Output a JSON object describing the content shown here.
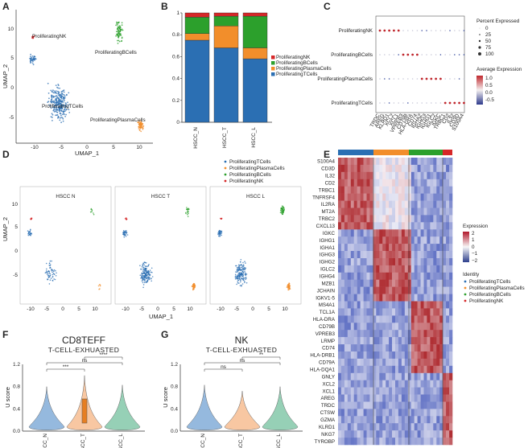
{
  "panels": {
    "a": "A",
    "b": "B",
    "c": "C",
    "d": "D",
    "e": "E",
    "f": "F",
    "g": "G"
  },
  "colors": {
    "t": "#2b6fb3",
    "plasma": "#f28e2b",
    "b": "#2ca02c",
    "nk": "#d62728"
  },
  "panel_a": {
    "xlabel": "UMAP_1",
    "ylabel": "UMAP_2",
    "xticks": [
      "-10",
      "-5",
      "0",
      "5",
      "10"
    ],
    "yticks": [
      "10",
      "5",
      "0",
      "-5"
    ],
    "cluster_labels": {
      "nk": "ProliferatingNK",
      "b": "ProliferatingBCells",
      "t": "ProliferatingTCells",
      "plasma": "ProliferatingPlasmaCells"
    }
  },
  "panel_d": {
    "xlabel": "UMAP_1",
    "ylabel": "UMAP_2",
    "facets": [
      "HSCC_N",
      "HSCC_T",
      "HSCC_L"
    ],
    "xticks": [
      "-10",
      "-5",
      "0",
      "5",
      "10"
    ],
    "yticks": [
      "10",
      "5",
      "0",
      "-5"
    ],
    "legend": [
      "ProliferatingTCells",
      "ProliferatingPlasmaCells",
      "ProliferatingBCells",
      "ProliferatingNK"
    ]
  },
  "panel_c": {
    "rows": [
      "ProliferatingNK",
      "ProliferatingBCells",
      "ProliferatingPlasmaCells",
      "ProliferatingTCells"
    ],
    "genes": [
      "TRDC",
      "AREG",
      "KLRD1",
      "XCL2",
      "XCL1",
      "VPREB3",
      "CD79B",
      "HLA-DRA",
      "CD74",
      "IGHA2",
      "IGHG3",
      "IGHG1",
      "IGLC2",
      "IGKC",
      "TRBC1",
      "CD2",
      "IL32",
      "CD3D",
      "S100A4"
    ],
    "pct_title": "Percent Expressed",
    "pct_labels": [
      "0",
      "25",
      "50",
      "75",
      "100"
    ],
    "avg_title": "Average Expression",
    "avg_labels": [
      "1.0",
      "0.5",
      "0.0",
      "-0.5"
    ]
  },
  "panel_e": {
    "genes": [
      "S100A4",
      "CD3D",
      "IL32",
      "CD2",
      "TRBC1",
      "TNFRSF4",
      "IL2RA",
      "MT2A",
      "TRBC2",
      "CXCL13",
      "IGKC",
      "IGHG1",
      "IGHA1",
      "IGHG3",
      "IGHG2",
      "IGLC2",
      "IGHG4",
      "MZB1",
      "JCHAIN",
      "IGKV1-5",
      "MS4A1",
      "TCL1A",
      "HLA-DRA",
      "CD79B",
      "VPREB3",
      "LRMP",
      "CD74",
      "HLA-DRB1",
      "CD79A",
      "HLA-DQA1",
      "GNLY",
      "XCL2",
      "XCL1",
      "AREG",
      "TRDC",
      "CTSW",
      "GZMA",
      "KLRD1",
      "NKG7",
      "TYROBP"
    ],
    "legend_title": "Expression",
    "legend_labels": [
      "2",
      "1",
      "0",
      "−1",
      "−2"
    ],
    "identity_title": "Identity",
    "identity": [
      "ProliferatingTCells",
      "ProliferatingPlasmaCells",
      "ProliferatingBCells",
      "ProliferatingNK"
    ]
  },
  "panel_f": {
    "title": "CD8TEFF",
    "subtitle": "T-CELL-EXHUASTED",
    "ylabel": "U score",
    "yticks": [
      "1.2",
      "0.8",
      "0.4",
      "0.0"
    ],
    "brackets": [
      "***",
      "ns",
      "****"
    ]
  },
  "panel_g": {
    "title": "NK",
    "subtitle": "T-CELL-EXHUASTED",
    "ylabel": "U score",
    "yticks": [
      "1.2",
      "0.8",
      "0.4",
      "0.0"
    ],
    "brackets": [
      "ns",
      "ns",
      "**"
    ]
  },
  "chart_data": [
    {
      "type": "bar",
      "stacked": true,
      "percent": true,
      "title": "",
      "categories": [
        "HSCC_N",
        "HSCC_T",
        "HSCC_L"
      ],
      "yticks": [
        "0",
        "0.2",
        "0.4",
        "0.6",
        "0.8",
        "1"
      ],
      "ylim": [
        0,
        1
      ],
      "series": [
        {
          "name": "ProliferatingTCells",
          "values": [
            0.75,
            0.68,
            0.58
          ]
        },
        {
          "name": "ProliferatingPlasmaCells",
          "values": [
            0.06,
            0.2,
            0.1
          ]
        },
        {
          "name": "ProliferatingBCells",
          "values": [
            0.15,
            0.09,
            0.29
          ]
        },
        {
          "name": "ProliferatingNK",
          "values": [
            0.04,
            0.03,
            0.03
          ]
        }
      ]
    },
    {
      "type": "violin",
      "title": "CD8TEFF",
      "groups": [
        "HSCC_N",
        "HSCC_T",
        "HSCC_L"
      ],
      "ylim": [
        0,
        1.2
      ],
      "medians": [
        0.12,
        0.2,
        0.08
      ]
    },
    {
      "type": "violin",
      "title": "NK",
      "groups": [
        "HSCC_N",
        "HSCC_T",
        "HSCC_L"
      ],
      "ylim": [
        0,
        1.2
      ],
      "medians": [
        0.1,
        0.08,
        0.06
      ]
    }
  ]
}
